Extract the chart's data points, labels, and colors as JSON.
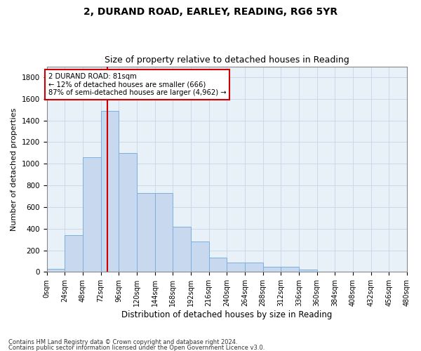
{
  "title1": "2, DURAND ROAD, EARLEY, READING, RG6 5YR",
  "title2": "Size of property relative to detached houses in Reading",
  "xlabel": "Distribution of detached houses by size in Reading",
  "ylabel": "Number of detached properties",
  "bar_values": [
    30,
    340,
    1060,
    1490,
    1100,
    730,
    730,
    420,
    280,
    130,
    90,
    90,
    50,
    50,
    20,
    0,
    0,
    0,
    0,
    0
  ],
  "bin_edges": [
    0,
    24,
    48,
    72,
    96,
    120,
    144,
    168,
    192,
    216,
    240,
    264,
    288,
    312,
    336,
    360,
    384,
    408,
    432,
    456,
    480
  ],
  "tick_labels": [
    "0sqm",
    "24sqm",
    "48sqm",
    "72sqm",
    "96sqm",
    "120sqm",
    "144sqm",
    "168sqm",
    "192sqm",
    "216sqm",
    "240sqm",
    "264sqm",
    "288sqm",
    "312sqm",
    "336sqm",
    "360sqm",
    "384sqm",
    "408sqm",
    "432sqm",
    "456sqm",
    "480sqm"
  ],
  "bar_color": "#c8d9ef",
  "bar_edge_color": "#7aafe0",
  "vline_x": 81,
  "vline_color": "#cc0000",
  "annotation_line1": "2 DURAND ROAD: 81sqm",
  "annotation_line2": "← 12% of detached houses are smaller (666)",
  "annotation_line3": "87% of semi-detached houses are larger (4,962) →",
  "annotation_box_color": "#cc0000",
  "ylim": [
    0,
    1900
  ],
  "yticks": [
    0,
    200,
    400,
    600,
    800,
    1000,
    1200,
    1400,
    1600,
    1800
  ],
  "footnote1": "Contains HM Land Registry data © Crown copyright and database right 2024.",
  "footnote2": "Contains public sector information licensed under the Open Government Licence v3.0.",
  "title1_fontsize": 10,
  "title2_fontsize": 9,
  "axis_label_fontsize": 8,
  "tick_fontsize": 7,
  "grid_color": "#c8d4e8",
  "bg_color": "#e8f0f8",
  "fig_bg": "#ffffff"
}
